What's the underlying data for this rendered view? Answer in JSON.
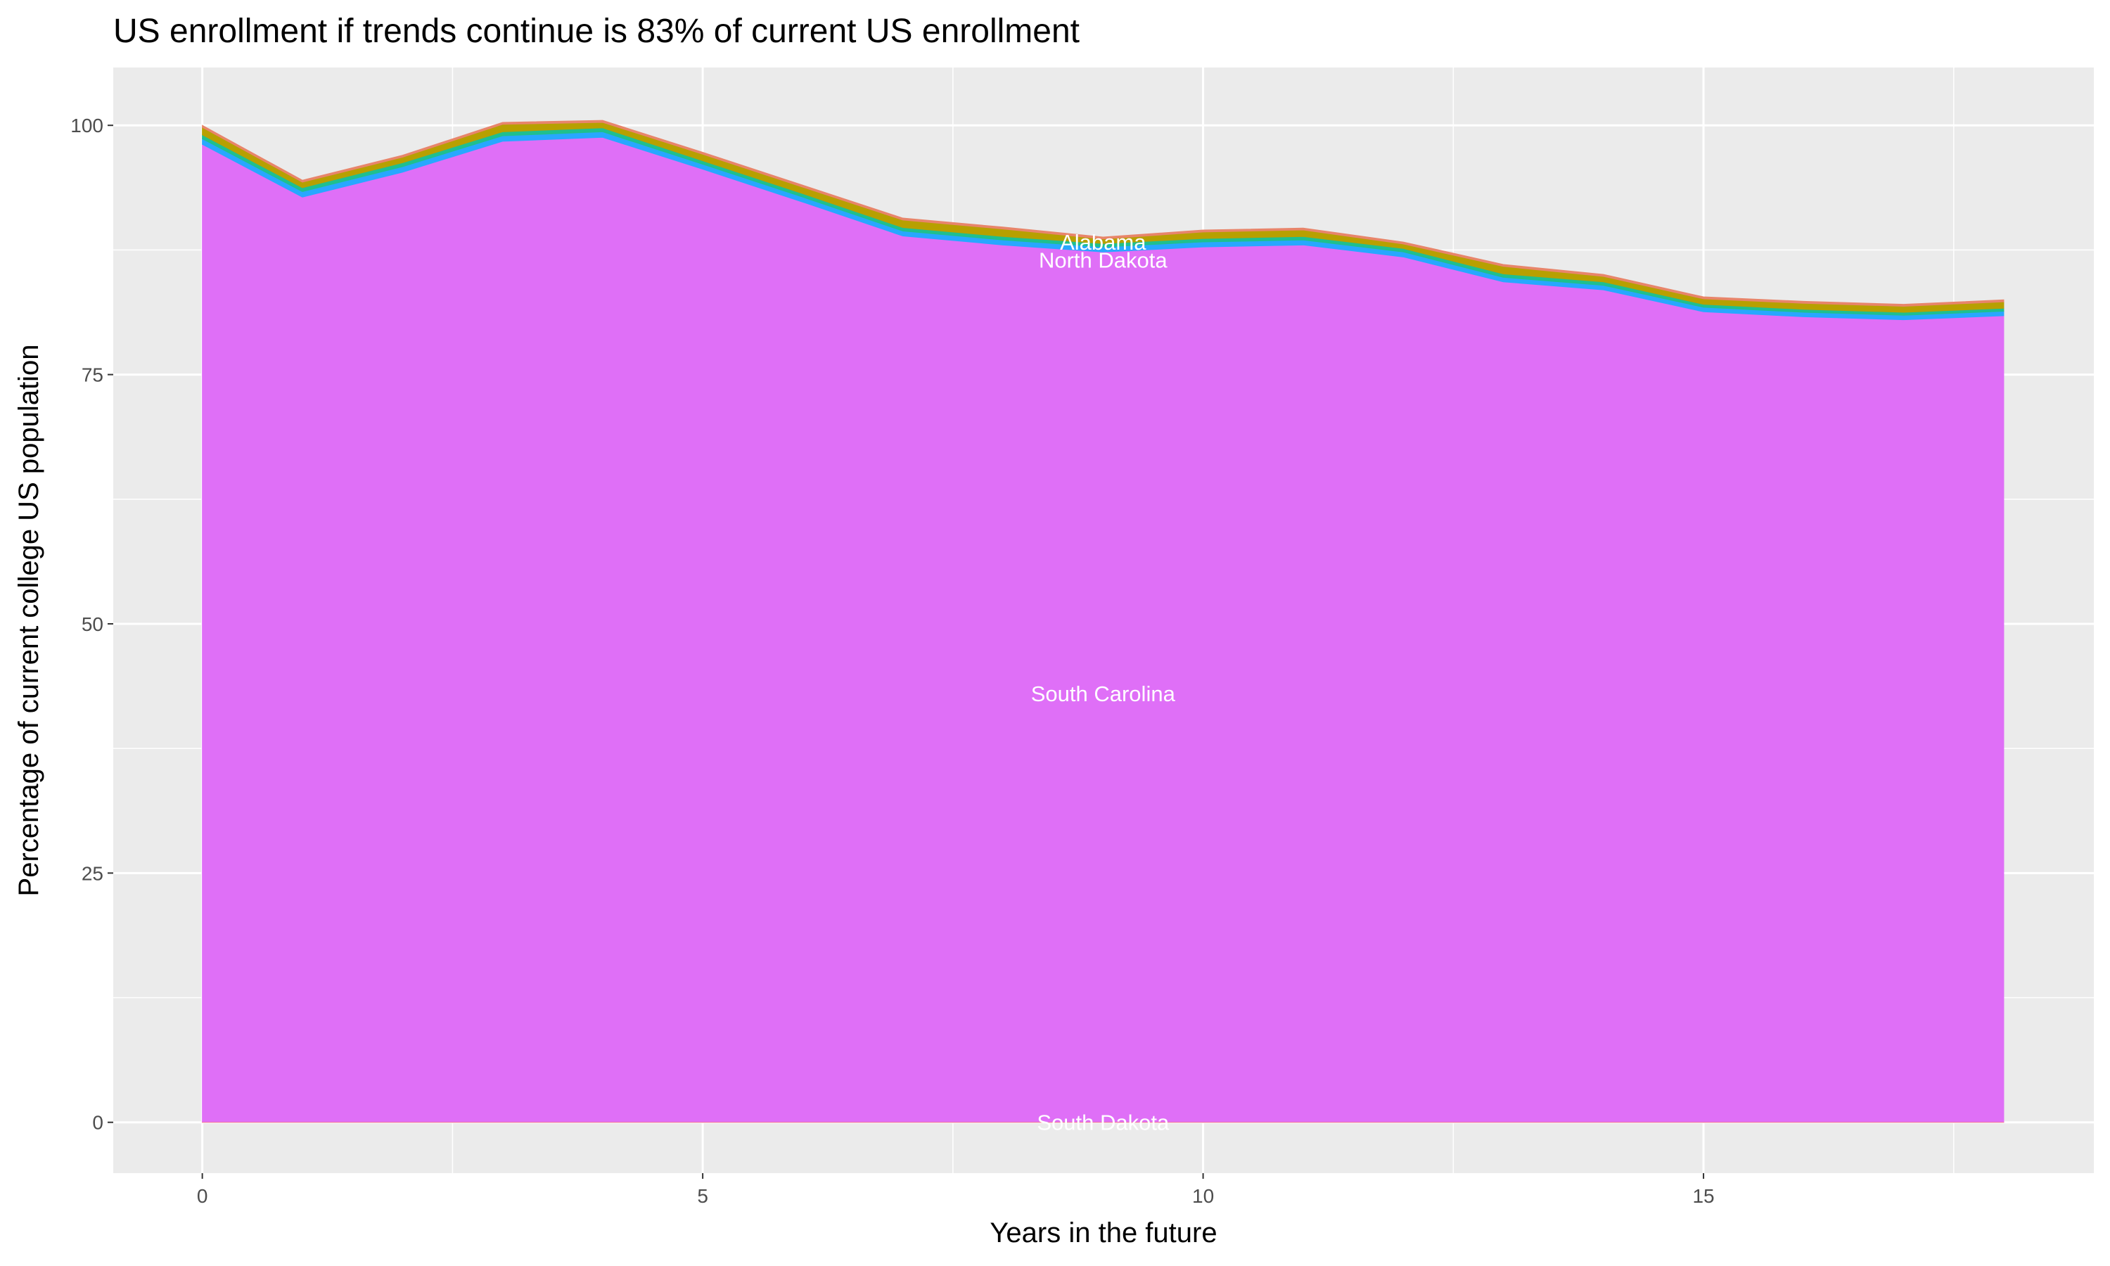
{
  "chart_data": {
    "type": "area",
    "stacked": true,
    "title": "US enrollment if trends continue is 83% of current US enrollment",
    "xlabel": "Years in the future",
    "ylabel": "Percentage of current college US population",
    "xlim": [
      -0.89,
      18.9
    ],
    "ylim": [
      -5.1,
      105.8
    ],
    "x_ticks": [
      0,
      5,
      10,
      15
    ],
    "y_ticks": [
      0,
      25,
      50,
      75,
      100
    ],
    "grid": true,
    "legend": "none",
    "x": [
      0,
      1,
      2,
      3,
      4,
      5,
      6,
      7,
      8,
      9,
      10,
      11,
      12,
      13,
      14,
      15,
      16,
      17,
      18
    ],
    "series": [
      {
        "name": "South Dakota",
        "color": "#f8766d",
        "values": [
          0.05,
          0.05,
          0.05,
          0.05,
          0.05,
          0.05,
          0.05,
          0.05,
          0.05,
          0.05,
          0.05,
          0.05,
          0.05,
          0.05,
          0.05,
          0.05,
          0.05,
          0.05,
          0.05
        ]
      },
      {
        "name": "South Carolina",
        "color": "#df6ff7",
        "values": [
          98.05,
          92.75,
          95.25,
          98.35,
          98.75,
          95.55,
          92.25,
          88.85,
          87.95,
          87.25,
          87.75,
          87.95,
          86.75,
          84.25,
          83.45,
          81.25,
          80.75,
          80.45,
          80.85
        ]
      },
      {
        "name": "North Dakota",
        "color": "#28a7ff",
        "values": [
          0.55,
          0.55,
          0.55,
          0.55,
          0.55,
          0.5,
          0.5,
          0.5,
          0.5,
          0.5,
          0.5,
          0.5,
          0.5,
          0.45,
          0.45,
          0.45,
          0.45,
          0.45,
          0.45
        ]
      },
      {
        "color": "#1fbf8f",
        "values": [
          0.4,
          0.4,
          0.4,
          0.4,
          0.4,
          0.35,
          0.35,
          0.35,
          0.35,
          0.35,
          0.35,
          0.35,
          0.35,
          0.35,
          0.35,
          0.3,
          0.3,
          0.3,
          0.3
        ]
      },
      {
        "color": "#b7a000",
        "values": [
          0.75,
          0.55,
          0.55,
          0.75,
          0.55,
          0.65,
          0.65,
          0.75,
          0.75,
          0.45,
          0.65,
          0.65,
          0.45,
          0.75,
          0.55,
          0.55,
          0.6,
          0.6,
          0.65
        ]
      },
      {
        "name": "Alabama",
        "color": "#e8856a",
        "values": [
          0.2,
          0.2,
          0.2,
          0.2,
          0.2,
          0.2,
          0.2,
          0.2,
          0.2,
          0.2,
          0.2,
          0.2,
          0.2,
          0.2,
          0.2,
          0.2,
          0.2,
          0.2,
          0.2
        ]
      }
    ],
    "annotations": [
      {
        "text": "Alabama",
        "x": 9,
        "y": 88.3
      },
      {
        "text": "North Dakota",
        "x": 9,
        "y": 86.5
      },
      {
        "text": "South Carolina",
        "x": 9,
        "y": 43
      },
      {
        "text": "South Dakota",
        "x": 9,
        "y": 0
      }
    ],
    "panel_background": "#ebebeb"
  }
}
